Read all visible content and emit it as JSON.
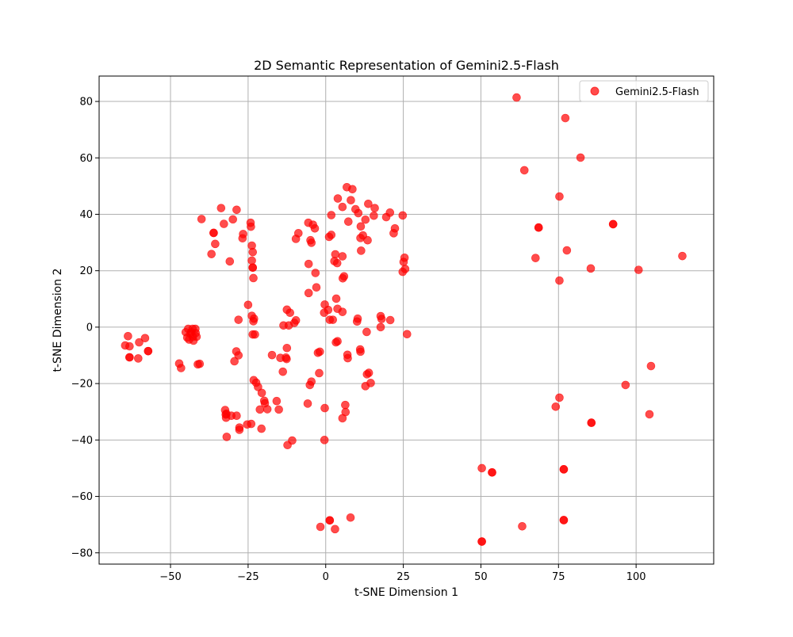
{
  "chart_data": {
    "type": "scatter",
    "title": "2D Semantic Representation of Gemini2.5-Flash",
    "xlabel": "t-SNE Dimension 1",
    "ylabel": "t-SNE Dimension 2",
    "xlim": [
      -73,
      125
    ],
    "ylim": [
      -84,
      89
    ],
    "xticks": [
      -50,
      -25,
      0,
      25,
      50,
      75,
      100
    ],
    "yticks": [
      -80,
      -60,
      -40,
      -20,
      0,
      20,
      40,
      60,
      80
    ],
    "xtick_labels": [
      "−50",
      "−25",
      "0",
      "25",
      "50",
      "75",
      "100"
    ],
    "ytick_labels": [
      "−80",
      "−60",
      "−40",
      "−20",
      "0",
      "20",
      "40",
      "60",
      "80"
    ],
    "grid": true,
    "legend_position": "top-right",
    "series": [
      {
        "name": "Gemini2.5-Flash",
        "color": "#ff0000",
        "alpha": 0.7,
        "points": [
          [
            61.5,
            81.4
          ],
          [
            77.2,
            74.1
          ],
          [
            82.1,
            60.1
          ],
          [
            64.0,
            55.6
          ],
          [
            75.3,
            46.3
          ],
          [
            68.6,
            35.3
          ],
          [
            68.6,
            35.3
          ],
          [
            92.6,
            36.5
          ],
          [
            92.6,
            36.5
          ],
          [
            114.9,
            25.2
          ],
          [
            67.6,
            24.5
          ],
          [
            77.7,
            27.2
          ],
          [
            85.4,
            20.8
          ],
          [
            100.8,
            20.3
          ],
          [
            75.3,
            16.5
          ],
          [
            104.8,
            -13.8
          ],
          [
            96.6,
            -20.5
          ],
          [
            75.3,
            -25.0
          ],
          [
            74.1,
            -28.2
          ],
          [
            104.3,
            -30.9
          ],
          [
            85.6,
            -33.9
          ],
          [
            85.6,
            -33.9
          ],
          [
            50.3,
            -50.0
          ],
          [
            53.6,
            -51.5
          ],
          [
            53.6,
            -51.5
          ],
          [
            76.7,
            -50.4
          ],
          [
            76.7,
            -50.4
          ],
          [
            76.7,
            -68.4
          ],
          [
            76.7,
            -68.4
          ],
          [
            63.3,
            -70.6
          ],
          [
            50.3,
            -76.0
          ],
          [
            50.3,
            -76.0
          ],
          [
            -64.6,
            -6.5
          ],
          [
            -63.7,
            -3.2
          ],
          [
            -63.2,
            -6.8
          ],
          [
            -63.2,
            -10.7
          ],
          [
            -63.2,
            -10.7
          ],
          [
            -60.4,
            -11.1
          ],
          [
            -60.1,
            -5.4
          ],
          [
            -58.2,
            -3.9
          ],
          [
            -57.2,
            -8.5
          ],
          [
            -57.2,
            -8.5
          ],
          [
            -47.2,
            -12.9
          ],
          [
            -46.6,
            -14.5
          ],
          [
            -45.1,
            -1.8
          ],
          [
            -44.6,
            -3.7
          ],
          [
            -44.3,
            -0.6
          ],
          [
            -44.0,
            -4.4
          ],
          [
            -43.6,
            -2.3
          ],
          [
            -43.3,
            -1.8
          ],
          [
            -42.9,
            -0.6
          ],
          [
            -42.8,
            -3.4
          ],
          [
            -42.6,
            -4.8
          ],
          [
            -42.0,
            -0.6
          ],
          [
            -41.9,
            -2.1
          ],
          [
            -41.6,
            -3.4
          ],
          [
            -41.2,
            -13.2
          ],
          [
            -40.6,
            -13.0
          ],
          [
            -40.0,
            38.3
          ],
          [
            -36.8,
            25.9
          ],
          [
            -36.1,
            33.4
          ],
          [
            -36.1,
            33.4
          ],
          [
            -35.6,
            29.5
          ],
          [
            -33.7,
            42.2
          ],
          [
            -32.8,
            36.6
          ],
          [
            -30.9,
            23.3
          ],
          [
            -29.9,
            38.2
          ],
          [
            -28.7,
            41.6
          ],
          [
            -26.8,
            31.5
          ],
          [
            -26.6,
            33.0
          ],
          [
            -24.2,
            37.0
          ],
          [
            -24.1,
            35.6
          ],
          [
            -23.8,
            23.6
          ],
          [
            -23.8,
            28.9
          ],
          [
            -23.5,
            26.6
          ],
          [
            -23.5,
            21.1
          ],
          [
            -23.5,
            21.1
          ],
          [
            -23.3,
            17.4
          ],
          [
            -25.0,
            7.9
          ],
          [
            -28.1,
            2.6
          ],
          [
            -23.8,
            4.0
          ],
          [
            -23.1,
            3.0
          ],
          [
            -23.3,
            2.1
          ],
          [
            -23.5,
            -2.6
          ],
          [
            -22.8,
            -2.6
          ],
          [
            -29.4,
            -12.1
          ],
          [
            -28.8,
            -8.6
          ],
          [
            -28.1,
            -10.0
          ],
          [
            -23.2,
            -18.8
          ],
          [
            -22.4,
            -19.7
          ],
          [
            -21.8,
            -21.2
          ],
          [
            -20.6,
            -23.3
          ],
          [
            -21.2,
            -29.2
          ],
          [
            -19.8,
            -26.1
          ],
          [
            -19.6,
            -27.0
          ],
          [
            -18.8,
            -29.1
          ],
          [
            -17.3,
            -9.9
          ],
          [
            -15.8,
            -26.2
          ],
          [
            -15.1,
            -29.2
          ],
          [
            -14.6,
            -10.9
          ],
          [
            -13.8,
            -15.8
          ],
          [
            -12.8,
            -10.8
          ],
          [
            -12.6,
            -11.3
          ],
          [
            -12.5,
            -7.4
          ],
          [
            -32.4,
            -29.4
          ],
          [
            -32.2,
            -31.0
          ],
          [
            -32.1,
            -32.1
          ],
          [
            -32.0,
            -30.7
          ],
          [
            -30.4,
            -31.4
          ],
          [
            -28.7,
            -31.4
          ],
          [
            -27.8,
            -35.6
          ],
          [
            -27.8,
            -36.4
          ],
          [
            -25.3,
            -34.5
          ],
          [
            -24.0,
            -34.3
          ],
          [
            -20.7,
            -36.0
          ],
          [
            -31.9,
            -38.9
          ],
          [
            -12.3,
            -41.8
          ],
          [
            -10.8,
            -40.2
          ],
          [
            -13.6,
            0.6
          ],
          [
            -12.5,
            6.2
          ],
          [
            -11.5,
            5.1
          ],
          [
            -11.9,
            0.6
          ],
          [
            -10.1,
            1.5
          ],
          [
            -9.6,
            2.4
          ],
          [
            -9.6,
            31.3
          ],
          [
            -8.8,
            33.3
          ],
          [
            -5.6,
            37.0
          ],
          [
            -4.9,
            30.8
          ],
          [
            -4.6,
            29.9
          ],
          [
            -4.1,
            36.3
          ],
          [
            -3.5,
            35.0
          ],
          [
            -5.5,
            22.4
          ],
          [
            -3.3,
            19.2
          ],
          [
            -3.0,
            14.1
          ],
          [
            -5.5,
            12.1
          ],
          [
            -0.3,
            8.0
          ],
          [
            0.8,
            6.1
          ],
          [
            -0.5,
            5.1
          ],
          [
            1.3,
            2.6
          ],
          [
            2.3,
            2.6
          ],
          [
            -2.5,
            -9.1
          ],
          [
            -1.9,
            -8.7
          ],
          [
            -5.1,
            -20.5
          ],
          [
            -4.6,
            -19.3
          ],
          [
            -2.1,
            -16.3
          ],
          [
            -5.8,
            -27.1
          ],
          [
            -0.3,
            -28.7
          ],
          [
            -0.4,
            -40.0
          ],
          [
            1.1,
            32.0
          ],
          [
            1.8,
            32.7
          ],
          [
            1.8,
            39.7
          ],
          [
            3.9,
            45.6
          ],
          [
            5.4,
            42.6
          ],
          [
            6.8,
            49.6
          ],
          [
            7.3,
            37.4
          ],
          [
            8.1,
            45.0
          ],
          [
            8.6,
            48.9
          ],
          [
            9.6,
            41.8
          ],
          [
            10.5,
            40.4
          ],
          [
            11.3,
            35.7
          ],
          [
            11.2,
            31.6
          ],
          [
            12.0,
            32.5
          ],
          [
            12.8,
            38.1
          ],
          [
            13.5,
            30.8
          ],
          [
            13.7,
            43.7
          ],
          [
            15.5,
            39.5
          ],
          [
            15.8,
            42.2
          ],
          [
            11.4,
            27.1
          ],
          [
            2.8,
            23.4
          ],
          [
            3.1,
            25.8
          ],
          [
            3.7,
            22.7
          ],
          [
            5.4,
            25.1
          ],
          [
            5.5,
            17.3
          ],
          [
            5.9,
            18.0
          ],
          [
            3.4,
            10.1
          ],
          [
            3.8,
            6.5
          ],
          [
            5.4,
            5.4
          ],
          [
            3.3,
            -5.4
          ],
          [
            3.8,
            -5.0
          ],
          [
            7.0,
            -9.8
          ],
          [
            7.1,
            -11.0
          ],
          [
            10.1,
            2.0
          ],
          [
            10.3,
            3.0
          ],
          [
            11.1,
            -7.9
          ],
          [
            11.2,
            -8.7
          ],
          [
            13.2,
            -1.7
          ],
          [
            13.3,
            -16.7
          ],
          [
            13.9,
            -16.2
          ],
          [
            12.8,
            -20.9
          ],
          [
            14.5,
            -19.8
          ],
          [
            6.3,
            -27.6
          ],
          [
            6.4,
            -30.1
          ],
          [
            5.4,
            -32.3
          ],
          [
            17.7,
            3.9
          ],
          [
            18.0,
            2.9
          ],
          [
            17.7,
            0.0
          ],
          [
            20.8,
            2.5
          ],
          [
            19.5,
            39.0
          ],
          [
            20.7,
            40.6
          ],
          [
            21.9,
            33.3
          ],
          [
            22.3,
            35.0
          ],
          [
            24.8,
            39.6
          ],
          [
            25.4,
            24.6
          ],
          [
            25.1,
            23.1
          ],
          [
            25.6,
            20.6
          ],
          [
            24.8,
            19.6
          ],
          [
            26.2,
            -2.5
          ],
          [
            1.3,
            -68.5
          ],
          [
            1.3,
            -68.5
          ],
          [
            -1.7,
            -70.8
          ],
          [
            3.0,
            -71.6
          ],
          [
            8.0,
            -67.5
          ]
        ]
      }
    ]
  }
}
